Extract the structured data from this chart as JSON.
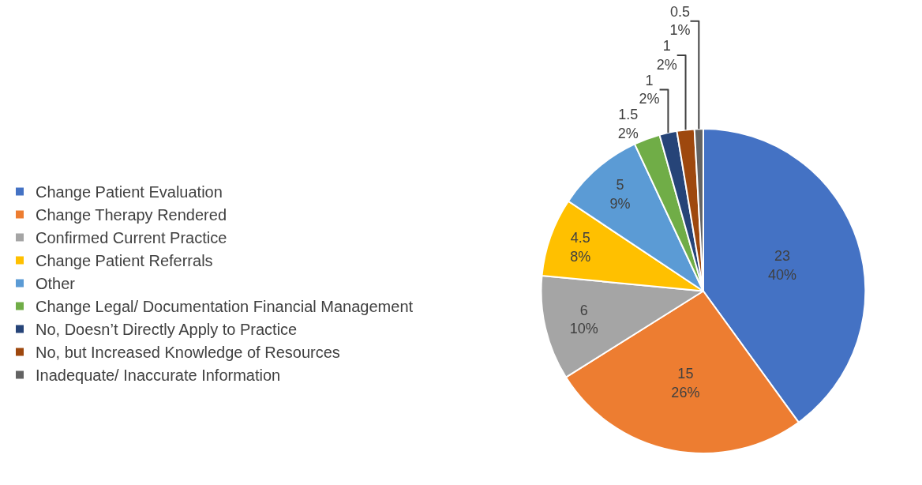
{
  "chart_data": {
    "type": "pie",
    "categories": [
      "Change Patient Evaluation",
      "Change Therapy Rendered",
      "Confirmed Current Practice",
      "Change Patient Referrals",
      "Other",
      "Change Legal/ Documentation Financial Management",
      "No, Doesn’t Directly Apply to Practice",
      "No, but Increased Knowledge of Resources",
      "Inadequate/ Inaccurate Information"
    ],
    "values": [
      23,
      15,
      6,
      4.5,
      5,
      1.5,
      1,
      1,
      0.5
    ],
    "value_labels": [
      "23\n40%",
      "15\n26%",
      "6\n10%",
      "4.5\n8%",
      "5\n9%",
      "1.5\n2%",
      "1\n2%",
      "1\n2%",
      "0.5\n1%"
    ],
    "colors": [
      "#4472c4",
      "#ed7d31",
      "#a5a5a5",
      "#ffc000",
      "#5b9bd5",
      "#70ad47",
      "#264478",
      "#9e480e",
      "#636363"
    ],
    "legend": "left"
  }
}
